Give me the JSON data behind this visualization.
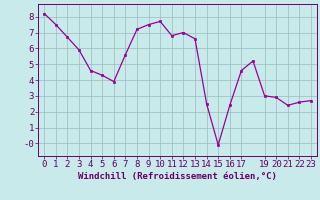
{
  "xlabel": "Windchill (Refroidissement éolien,°C)",
  "x_values": [
    0,
    1,
    2,
    3,
    4,
    5,
    6,
    7,
    8,
    9,
    10,
    11,
    12,
    13,
    14,
    15,
    16,
    17,
    18,
    19,
    20,
    21,
    22,
    23
  ],
  "y_values": [
    8.2,
    7.5,
    6.7,
    5.9,
    4.6,
    4.3,
    3.9,
    5.6,
    7.2,
    7.5,
    7.7,
    6.8,
    7.0,
    6.6,
    2.5,
    -0.1,
    2.4,
    4.6,
    5.2,
    3.0,
    2.9,
    2.4,
    2.6,
    2.7
  ],
  "line_color": "#990099",
  "marker_color": "#990099",
  "bg_color": "#c8eaea",
  "grid_color": "#9bbcbc",
  "tick_color": "#660066",
  "font_color": "#660066",
  "ylim": [
    -0.8,
    8.8
  ],
  "xlim": [
    -0.5,
    23.5
  ],
  "yticks": [
    0,
    1,
    2,
    3,
    4,
    5,
    6,
    7,
    8
  ],
  "ytick_labels": [
    "-0",
    "1",
    "2",
    "3",
    "4",
    "5",
    "6",
    "7",
    "8"
  ],
  "xticks": [
    0,
    1,
    2,
    3,
    4,
    5,
    6,
    7,
    8,
    9,
    10,
    11,
    12,
    13,
    14,
    15,
    16,
    17,
    19,
    20,
    21,
    22,
    23
  ],
  "xlabel_fontsize": 6.5,
  "tick_fontsize": 6.5
}
